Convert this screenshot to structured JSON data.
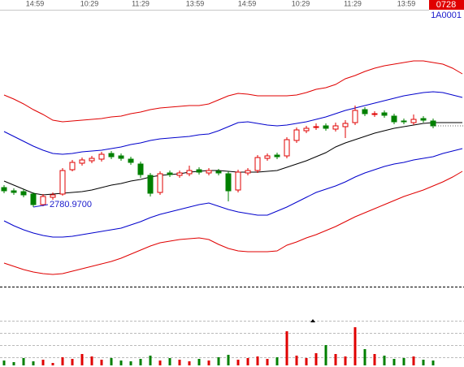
{
  "chart_data": {
    "type": "candlestick",
    "symbol": "1A0001",
    "date_badge": "0728",
    "time_labels": [
      "14:59",
      "10:29",
      "11:29",
      "13:59",
      "14:59",
      "10:29",
      "11:29",
      "13:59"
    ],
    "ylim": [
      2686,
      3026
    ],
    "up_color": "#e00000",
    "down_color": "#008000",
    "low_label": {
      "value": 2780.97,
      "label": "2780.9700"
    },
    "low_color": "#1a1acc",
    "candles": {
      "open": [
        2805,
        2801,
        2800,
        2797,
        2784,
        2793,
        2797,
        2827,
        2835,
        2838,
        2840,
        2847,
        2844,
        2840,
        2834,
        2820,
        2799,
        2823,
        2820,
        2822,
        2827,
        2823,
        2825,
        2822,
        2802,
        2823,
        2826,
        2841,
        2845,
        2844,
        2863,
        2875,
        2879,
        2881,
        2877,
        2880,
        2885,
        2901,
        2895,
        2897,
        2893,
        2887,
        2885,
        2890,
        2887
      ],
      "high": [
        2808,
        2804,
        2803,
        2799,
        2797,
        2799,
        2829,
        2839,
        2842,
        2844,
        2849,
        2850,
        2847,
        2843,
        2837,
        2823,
        2825,
        2826,
        2826,
        2832,
        2830,
        2829,
        2828,
        2825,
        2827,
        2829,
        2845,
        2847,
        2848,
        2867,
        2879,
        2881,
        2884,
        2884,
        2885,
        2888,
        2906,
        2904,
        2899,
        2900,
        2896,
        2890,
        2895,
        2893,
        2890
      ],
      "low": [
        2798,
        2796,
        2793,
        2780.97,
        2782,
        2790,
        2795,
        2825,
        2832,
        2835,
        2837,
        2840,
        2838,
        2833,
        2817,
        2794,
        2796,
        2818,
        2817,
        2819,
        2821,
        2820,
        2820,
        2788,
        2799,
        2820,
        2823,
        2838,
        2840,
        2841,
        2860,
        2872,
        2876,
        2875,
        2874,
        2866,
        2882,
        2893,
        2892,
        2891,
        2883,
        2883,
        2882,
        2885,
        2878
      ],
      "close": [
        2801,
        2799,
        2796,
        2784,
        2794,
        2796,
        2826,
        2836,
        2839,
        2841,
        2846,
        2843,
        2841,
        2836,
        2821,
        2798,
        2822,
        2821,
        2823,
        2826,
        2824,
        2826,
        2823,
        2801,
        2824,
        2826,
        2842,
        2844,
        2843,
        2864,
        2876,
        2878,
        2880,
        2878,
        2881,
        2884,
        2900,
        2896,
        2896,
        2894,
        2886,
        2886,
        2889,
        2888,
        2881
      ]
    },
    "lines": [
      {
        "color": "#e00000",
        "values": [
          2919,
          2914,
          2908,
          2901,
          2895,
          2888,
          2886,
          2887,
          2888,
          2889,
          2890,
          2892,
          2893,
          2896,
          2898,
          2901,
          2903,
          2904,
          2905,
          2906,
          2906,
          2908,
          2913,
          2918,
          2921,
          2920,
          2918,
          2918,
          2918,
          2918,
          2919,
          2922,
          2926,
          2928,
          2932,
          2939,
          2943,
          2948,
          2952,
          2955,
          2957,
          2959,
          2961,
          2961,
          2959,
          2957,
          2952,
          2945
        ]
      },
      {
        "color": "#0000cc",
        "values": [
          2874,
          2868,
          2862,
          2856,
          2851,
          2847,
          2846,
          2847,
          2849,
          2850,
          2851,
          2853,
          2855,
          2858,
          2860,
          2863,
          2865,
          2866,
          2867,
          2868,
          2870,
          2871,
          2875,
          2880,
          2885,
          2886,
          2884,
          2882,
          2881,
          2882,
          2884,
          2886,
          2889,
          2892,
          2896,
          2900,
          2903,
          2906,
          2909,
          2912,
          2915,
          2918,
          2920,
          2922,
          2923,
          2922,
          2919,
          2916
        ]
      },
      {
        "color": "#000000",
        "values": [
          2813,
          2808,
          2803,
          2798,
          2796,
          2797,
          2798,
          2799,
          2800,
          2802,
          2805,
          2808,
          2810,
          2813,
          2815,
          2818,
          2820,
          2821,
          2822,
          2824,
          2825,
          2826,
          2826,
          2825,
          2824,
          2824,
          2824,
          2825,
          2826,
          2830,
          2834,
          2838,
          2843,
          2848,
          2855,
          2860,
          2864,
          2868,
          2872,
          2875,
          2878,
          2880,
          2882,
          2884,
          2885,
          2885,
          2885,
          2885
        ]
      },
      {
        "color": "#0000cc",
        "values": [
          2764,
          2758,
          2753,
          2749,
          2746,
          2744,
          2744,
          2745,
          2747,
          2749,
          2751,
          2753,
          2755,
          2759,
          2763,
          2768,
          2772,
          2775,
          2778,
          2781,
          2784,
          2786,
          2782,
          2778,
          2775,
          2773,
          2771,
          2771,
          2776,
          2781,
          2787,
          2793,
          2799,
          2803,
          2807,
          2812,
          2818,
          2823,
          2827,
          2831,
          2834,
          2836,
          2839,
          2841,
          2843,
          2847,
          2850,
          2853
        ]
      },
      {
        "color": "#e00000",
        "values": [
          2712,
          2708,
          2704,
          2701,
          2699,
          2698,
          2699,
          2702,
          2705,
          2708,
          2711,
          2714,
          2718,
          2723,
          2728,
          2733,
          2737,
          2739,
          2741,
          2742,
          2743,
          2741,
          2735,
          2730,
          2727,
          2726,
          2726,
          2726,
          2727,
          2734,
          2738,
          2743,
          2747,
          2752,
          2757,
          2763,
          2769,
          2774,
          2779,
          2784,
          2789,
          2794,
          2798,
          2802,
          2807,
          2812,
          2818,
          2825
        ]
      }
    ],
    "volume": {
      "ylim": [
        0,
        100
      ],
      "values": [
        12,
        8,
        18,
        10,
        14,
        6,
        20,
        16,
        28,
        22,
        14,
        18,
        12,
        10,
        16,
        24,
        12,
        18,
        14,
        10,
        16,
        12,
        20,
        26,
        14,
        18,
        22,
        16,
        20,
        84,
        24,
        18,
        30,
        50,
        28,
        22,
        94,
        40,
        28,
        24,
        16,
        18,
        22,
        14,
        12
      ]
    }
  }
}
